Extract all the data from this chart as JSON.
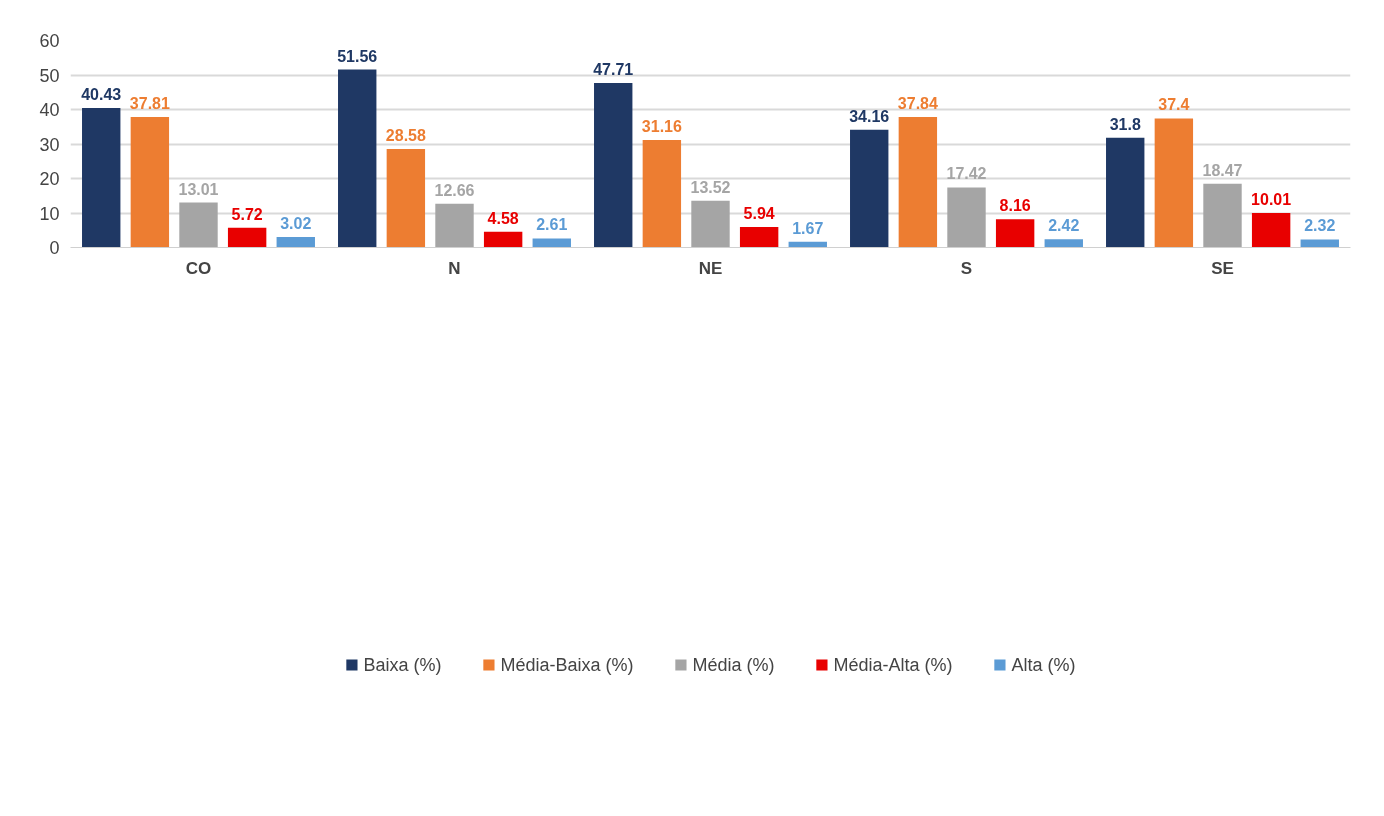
{
  "chart_data": {
    "type": "bar",
    "categories": [
      "CO",
      "N",
      "NE",
      "S",
      "SE"
    ],
    "series": [
      {
        "name": "Baixa (%)",
        "color": "#1f3864",
        "values": [
          40.43,
          51.56,
          47.71,
          34.16,
          31.8
        ]
      },
      {
        "name": "Média-Baixa (%)",
        "color": "#ed7d31",
        "values": [
          37.81,
          28.58,
          31.16,
          37.84,
          37.4
        ]
      },
      {
        "name": "Média (%)",
        "color": "#a5a5a5",
        "values": [
          13.01,
          12.66,
          13.52,
          17.42,
          18.47
        ]
      },
      {
        "name": "Média-Alta (%)",
        "color": "#e80000",
        "values": [
          5.72,
          4.58,
          5.94,
          8.16,
          10.01
        ]
      },
      {
        "name": "Alta (%)",
        "color": "#5b9bd5",
        "values": [
          3.02,
          2.61,
          1.67,
          2.42,
          2.32
        ]
      }
    ],
    "ylim": [
      0,
      60
    ],
    "yticks": [
      0,
      10,
      20,
      30,
      40,
      50,
      60
    ],
    "grid": "y",
    "legend": "bottom",
    "data_labels": true
  }
}
